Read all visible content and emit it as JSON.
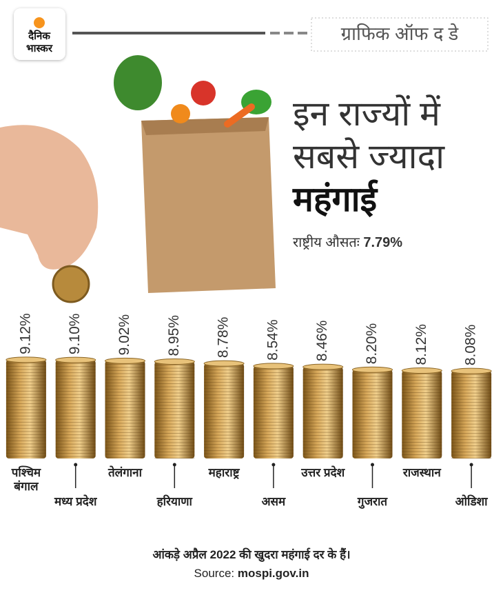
{
  "logo": {
    "line1": "दैनिक",
    "line2": "भास्कर"
  },
  "header": "ग्राफिक ऑफ द डे",
  "title": {
    "line1": "इन राज्यों में",
    "line2": "सबसे ज्यादा",
    "line3": "महंगाई"
  },
  "average": {
    "label": "राष्ट्रीय औसतः",
    "value_text": "7.79%"
  },
  "chart_data": {
    "type": "bar",
    "categories": [
      "पश्चिम बंगाल",
      "मध्य प्रदेश",
      "तेलंगाना",
      "हरियाणा",
      "महाराष्ट्र",
      "असम",
      "उत्तर प्रदेश",
      "गुजरात",
      "राजस्थान",
      "ओडिशा"
    ],
    "values": [
      9.12,
      9.1,
      9.02,
      8.95,
      8.78,
      8.54,
      8.46,
      8.2,
      8.12,
      8.08
    ],
    "value_labels": [
      "9.12%",
      "9.10%",
      "9.02%",
      "8.95%",
      "8.78%",
      "8.54%",
      "8.46%",
      "8.20%",
      "8.12%",
      "8.08%"
    ],
    "ylim": [
      0,
      10
    ]
  },
  "footer": {
    "note": "आंकड़े अप्रैल 2022 की खुदरा महंगाई दर के हैं।",
    "source_label": "Source:",
    "source": "mospi.gov.in"
  }
}
